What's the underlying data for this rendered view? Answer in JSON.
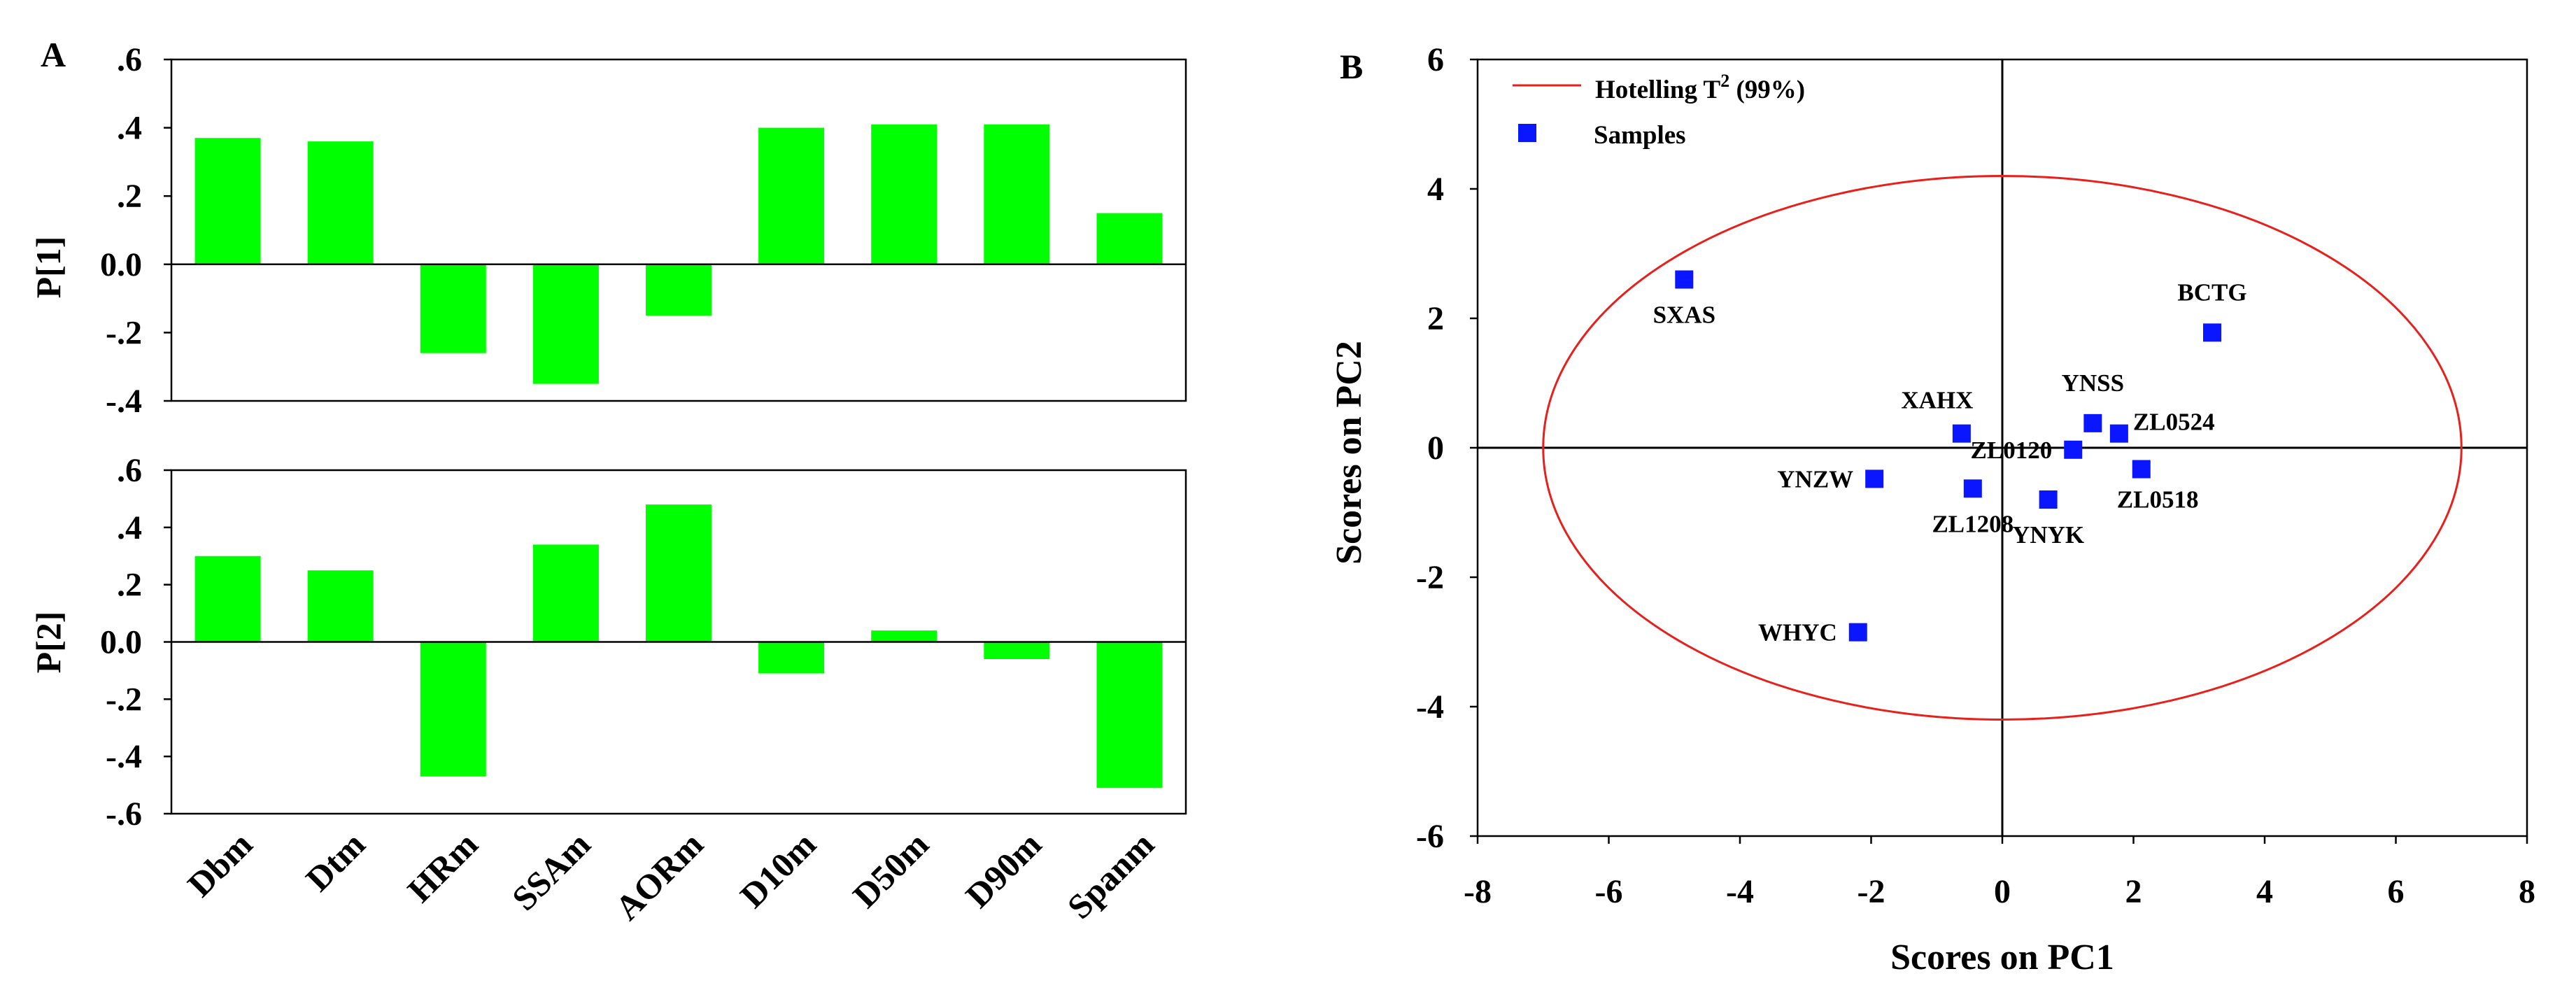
{
  "chart_data": [
    {
      "panel": "A",
      "type": "bar",
      "ylabel": "P[1]",
      "categories": [
        "Dbm",
        "Dtm",
        "HRm",
        "SSAm",
        "AORm",
        "D10m",
        "D50m",
        "D90m",
        "Spanm"
      ],
      "values": [
        0.37,
        0.36,
        -0.26,
        -0.35,
        -0.15,
        0.4,
        0.41,
        0.41,
        0.15
      ],
      "ylim": [
        -0.4,
        0.6
      ],
      "yticks": [
        0.6,
        0.4,
        0.2,
        0.0,
        -0.2,
        -0.4
      ],
      "ytick_labels": [
        ".6",
        ".4",
        ".2",
        "0.0",
        "-.2",
        "-.4"
      ],
      "bar_color": "#00ff00"
    },
    {
      "panel": "",
      "type": "bar",
      "ylabel": "P[2]",
      "categories": [
        "Dbm",
        "Dtm",
        "HRm",
        "SSAm",
        "AORm",
        "D10m",
        "D50m",
        "D90m",
        "Spanm"
      ],
      "values": [
        0.3,
        0.25,
        -0.47,
        0.34,
        0.48,
        -0.11,
        0.04,
        -0.06,
        -0.51
      ],
      "ylim": [
        -0.6,
        0.6
      ],
      "yticks": [
        0.6,
        0.4,
        0.2,
        0.0,
        -0.2,
        -0.4,
        -0.6
      ],
      "ytick_labels": [
        ".6",
        ".4",
        ".2",
        "0.0",
        "-.2",
        "-.4",
        "-.6"
      ],
      "bar_color": "#00ff00"
    },
    {
      "panel": "B",
      "type": "scatter",
      "xlabel": "Scores on PC1",
      "ylabel": "Scores on PC2",
      "xlim": [
        -8,
        8
      ],
      "ylim": [
        -6,
        6
      ],
      "xticks": [
        -8,
        -6,
        -4,
        -2,
        0,
        2,
        4,
        6,
        8
      ],
      "yticks": [
        6,
        4,
        2,
        0,
        -2,
        -4,
        -6
      ],
      "legend": {
        "ellipse_label": "Hotelling T",
        "ellipse_sup": "2",
        "ellipse_suffix": " (99%)",
        "points_label": "Samples"
      },
      "ellipse": {
        "center": [
          0,
          0
        ],
        "semi_axis_x": 7.0,
        "semi_axis_y": 4.2,
        "color": "#e8201c"
      },
      "point_color": "#0a16ff",
      "points": [
        {
          "name": "SXAS",
          "x": -4.85,
          "y": 2.6,
          "label_pos": "below"
        },
        {
          "name": "BCTG",
          "x": 3.2,
          "y": 1.78,
          "label_pos": "above"
        },
        {
          "name": "XAHX",
          "x": -0.62,
          "y": 0.22,
          "label_pos": "above-left"
        },
        {
          "name": "YNSS",
          "x": 1.38,
          "y": 0.38,
          "label_pos": "above"
        },
        {
          "name": "ZL0524",
          "x": 1.78,
          "y": 0.22,
          "label_pos": "right"
        },
        {
          "name": "ZL0120",
          "x": 1.08,
          "y": -0.03,
          "label_pos": "left"
        },
        {
          "name": "YNZW",
          "x": -1.95,
          "y": -0.48,
          "label_pos": "left"
        },
        {
          "name": "ZL1208",
          "x": -0.45,
          "y": -0.63,
          "label_pos": "below"
        },
        {
          "name": "ZL0518",
          "x": 2.12,
          "y": -0.33,
          "label_pos": "below-right"
        },
        {
          "name": "YNYK",
          "x": 0.7,
          "y": -0.8,
          "label_pos": "below"
        },
        {
          "name": "WHYC",
          "x": -2.2,
          "y": -2.85,
          "label_pos": "left"
        }
      ]
    }
  ]
}
